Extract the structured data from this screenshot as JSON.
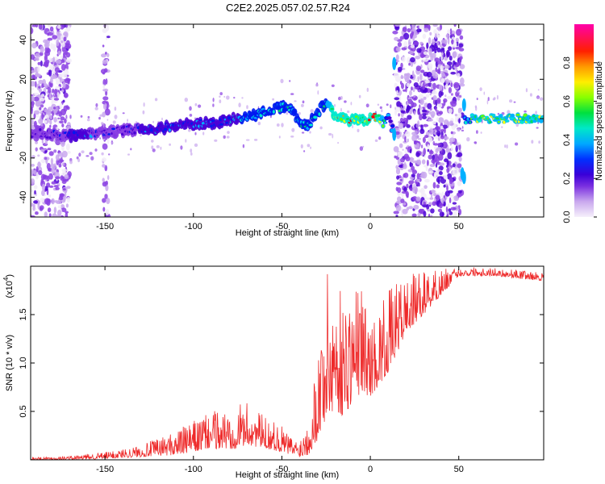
{
  "title": "C2E2.2025.057.02.57.R24",
  "chart_data": [
    {
      "type": "heatmap",
      "xlabel": "Height of straight line (km)",
      "ylabel": "Frequency (Hz)",
      "xlim": [
        -192,
        98
      ],
      "ylim": [
        -50,
        48
      ],
      "x_ticks": [
        -150,
        -100,
        -50,
        0,
        50
      ],
      "y_ticks": [
        -40,
        -20,
        0,
        20,
        40
      ],
      "colorbar": {
        "label": "Normalized spectral amplitude",
        "range": [
          0.0,
          1.0
        ],
        "ticks": [
          0.0,
          0.2,
          0.4,
          0.6,
          0.8
        ],
        "colors": [
          "#f2ecf8",
          "#c9a8ee",
          "#8a3fe3",
          "#4b00d6",
          "#0018f0",
          "#00b0ff",
          "#00e8d0",
          "#00e060",
          "#66ff00",
          "#ffff00",
          "#ff9900",
          "#ff0000",
          "#ff00aa"
        ]
      },
      "trace": {
        "x": [
          -192,
          -180,
          -170,
          -160,
          -150,
          -140,
          -130,
          -120,
          -110,
          -100,
          -90,
          -80,
          -70,
          -60,
          -50,
          -45,
          -40,
          -35,
          -30,
          -25,
          -20,
          -10,
          0,
          5,
          8,
          10,
          12,
          55,
          60,
          70,
          80,
          90,
          98
        ],
        "y": [
          -7,
          -8,
          -9,
          -8,
          -7,
          -6,
          -5,
          -5,
          -4,
          -3,
          -2,
          -1,
          1,
          3,
          6,
          5,
          -2,
          -3,
          3,
          8,
          1,
          -1,
          0,
          1,
          -3,
          2,
          -5,
          0,
          0,
          0,
          0,
          0,
          0
        ],
        "amplitude": [
          0.25,
          0.3,
          0.35,
          0.35,
          0.32,
          0.3,
          0.35,
          0.35,
          0.4,
          0.4,
          0.4,
          0.45,
          0.5,
          0.5,
          0.55,
          0.5,
          0.5,
          0.55,
          0.55,
          0.6,
          0.85,
          0.85,
          0.9,
          0.8,
          0.6,
          0.5,
          0.4,
          0.5,
          0.75,
          0.7,
          0.7,
          0.7,
          0.7
        ]
      },
      "noise_bands_x": [
        [
          -192,
          -170
        ],
        [
          -151,
          -148
        ],
        [
          14,
          52
        ]
      ]
    },
    {
      "type": "line",
      "xlabel": "Height of straight line (km)",
      "ylabel": "SNR (10 * v/v)",
      "y_multiplier": "(x10",
      "y_multiplier_exp": "4",
      "xlim": [
        -192,
        98
      ],
      "ylim": [
        0,
        20000
      ],
      "x_ticks": [
        -150,
        -100,
        -50,
        0,
        50
      ],
      "y_ticks": [
        5000,
        10000,
        15000
      ],
      "y_tick_labels": [
        "0.5",
        "1.0",
        "1.5"
      ],
      "line_color": "#ee2a2a",
      "envelope_x": [
        -192,
        -170,
        -150,
        -130,
        -110,
        -100,
        -90,
        -80,
        -70,
        -60,
        -50,
        -45,
        -40,
        -35,
        -30,
        -25,
        -20,
        -15,
        -10,
        -5,
        0,
        10,
        20,
        30,
        40,
        50,
        60,
        70,
        80,
        90,
        98
      ],
      "envelope_low": [
        0,
        0,
        100,
        300,
        500,
        800,
        1200,
        1000,
        1500,
        1200,
        800,
        500,
        300,
        500,
        2000,
        4000,
        5000,
        4500,
        6000,
        7000,
        6500,
        9000,
        13000,
        15000,
        17000,
        19000,
        19000,
        19000,
        18800,
        18600,
        18500
      ],
      "envelope_high": [
        300,
        400,
        800,
        1500,
        3000,
        4000,
        5000,
        5500,
        6000,
        4500,
        3500,
        2500,
        2000,
        5000,
        11000,
        19500,
        19000,
        17000,
        18000,
        18500,
        14000,
        17500,
        19000,
        19500,
        19800,
        19700,
        20000,
        19800,
        19700,
        19500,
        19300
      ]
    }
  ]
}
